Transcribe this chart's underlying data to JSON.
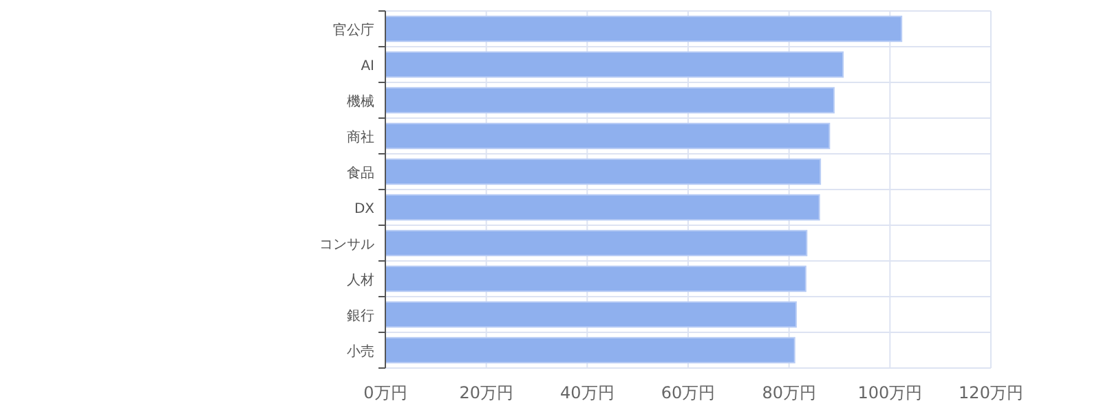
{
  "chart_data": {
    "type": "bar",
    "orientation": "horizontal",
    "categories": [
      "官公庁",
      "AI",
      "機械",
      "商社",
      "食品",
      "DX",
      "コンサル",
      "人材",
      "銀行",
      "小売"
    ],
    "values": [
      102.3,
      90.7,
      88.9,
      88.0,
      86.2,
      86.0,
      83.5,
      83.3,
      81.4,
      81.1
    ],
    "color": "#8fb0ee",
    "xlim": [
      0,
      120
    ],
    "xticks": [
      {
        "value": 0,
        "label": "0万円"
      },
      {
        "value": 20,
        "label": "20万円"
      },
      {
        "value": 40,
        "label": "40万円"
      },
      {
        "value": 60,
        "label": "60万円"
      },
      {
        "value": 80,
        "label": "80万円"
      },
      {
        "value": 100,
        "label": "100万円"
      },
      {
        "value": 120,
        "label": "120万円"
      }
    ],
    "grid": true
  }
}
